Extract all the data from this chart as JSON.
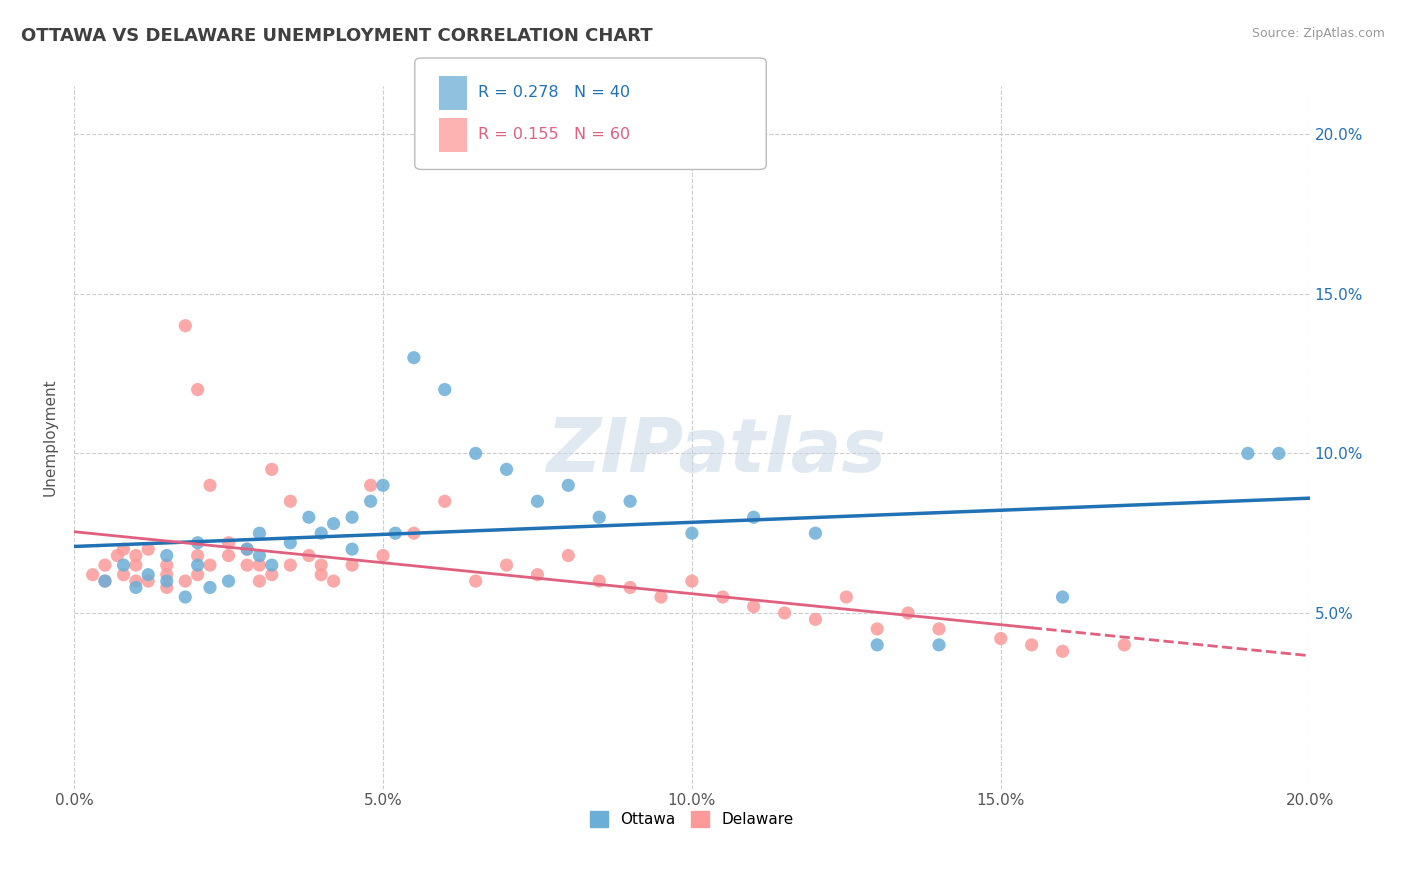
{
  "title": "OTTAWA VS DELAWARE UNEMPLOYMENT CORRELATION CHART",
  "source": "Source: ZipAtlas.com",
  "ylabel": "Unemployment",
  "xlim": [
    0,
    0.2
  ],
  "ylim": [
    -0.005,
    0.215
  ],
  "xticks": [
    0.0,
    0.05,
    0.1,
    0.15,
    0.2
  ],
  "yticks": [
    0.05,
    0.1,
    0.15,
    0.2
  ],
  "xtick_labels": [
    "0.0%",
    "5.0%",
    "10.0%",
    "15.0%",
    "20.0%"
  ],
  "ytick_labels": [
    "5.0%",
    "10.0%",
    "15.0%",
    "20.0%"
  ],
  "ottawa_color": "#6baed6",
  "delaware_color": "#fb9a99",
  "ottawa_line_color": "#2171b5",
  "delaware_line_color": "#e0607e",
  "R_ottawa": 0.278,
  "N_ottawa": 40,
  "R_delaware": 0.155,
  "N_delaware": 60,
  "legend_ottawa": "Ottawa",
  "legend_delaware": "Delaware",
  "watermark": "ZIPatlas",
  "ottawa_x": [
    0.005,
    0.008,
    0.01,
    0.012,
    0.015,
    0.015,
    0.018,
    0.02,
    0.02,
    0.022,
    0.025,
    0.028,
    0.03,
    0.03,
    0.032,
    0.035,
    0.038,
    0.04,
    0.042,
    0.045,
    0.045,
    0.048,
    0.05,
    0.052,
    0.055,
    0.06,
    0.065,
    0.07,
    0.075,
    0.08,
    0.085,
    0.09,
    0.1,
    0.11,
    0.12,
    0.13,
    0.14,
    0.16,
    0.19,
    0.195
  ],
  "ottawa_y": [
    0.06,
    0.065,
    0.058,
    0.062,
    0.06,
    0.068,
    0.055,
    0.065,
    0.072,
    0.058,
    0.06,
    0.07,
    0.068,
    0.075,
    0.065,
    0.072,
    0.08,
    0.075,
    0.078,
    0.07,
    0.08,
    0.085,
    0.09,
    0.075,
    0.13,
    0.12,
    0.1,
    0.095,
    0.085,
    0.09,
    0.08,
    0.085,
    0.075,
    0.08,
    0.075,
    0.04,
    0.04,
    0.055,
    0.1,
    0.1
  ],
  "delaware_x": [
    0.003,
    0.005,
    0.005,
    0.007,
    0.008,
    0.008,
    0.01,
    0.01,
    0.01,
    0.012,
    0.012,
    0.015,
    0.015,
    0.015,
    0.018,
    0.018,
    0.02,
    0.02,
    0.02,
    0.022,
    0.022,
    0.025,
    0.025,
    0.028,
    0.028,
    0.03,
    0.03,
    0.032,
    0.032,
    0.035,
    0.035,
    0.038,
    0.04,
    0.04,
    0.042,
    0.045,
    0.048,
    0.05,
    0.055,
    0.06,
    0.065,
    0.07,
    0.075,
    0.08,
    0.085,
    0.09,
    0.095,
    0.1,
    0.105,
    0.11,
    0.115,
    0.12,
    0.125,
    0.13,
    0.135,
    0.14,
    0.15,
    0.155,
    0.16,
    0.17
  ],
  "delaware_y": [
    0.062,
    0.06,
    0.065,
    0.068,
    0.062,
    0.07,
    0.06,
    0.065,
    0.068,
    0.06,
    0.07,
    0.065,
    0.058,
    0.062,
    0.14,
    0.06,
    0.12,
    0.068,
    0.062,
    0.065,
    0.09,
    0.068,
    0.072,
    0.065,
    0.07,
    0.06,
    0.065,
    0.095,
    0.062,
    0.065,
    0.085,
    0.068,
    0.065,
    0.062,
    0.06,
    0.065,
    0.09,
    0.068,
    0.075,
    0.085,
    0.06,
    0.065,
    0.062,
    0.068,
    0.06,
    0.058,
    0.055,
    0.06,
    0.055,
    0.052,
    0.05,
    0.048,
    0.055,
    0.045,
    0.05,
    0.045,
    0.042,
    0.04,
    0.038,
    0.04
  ]
}
